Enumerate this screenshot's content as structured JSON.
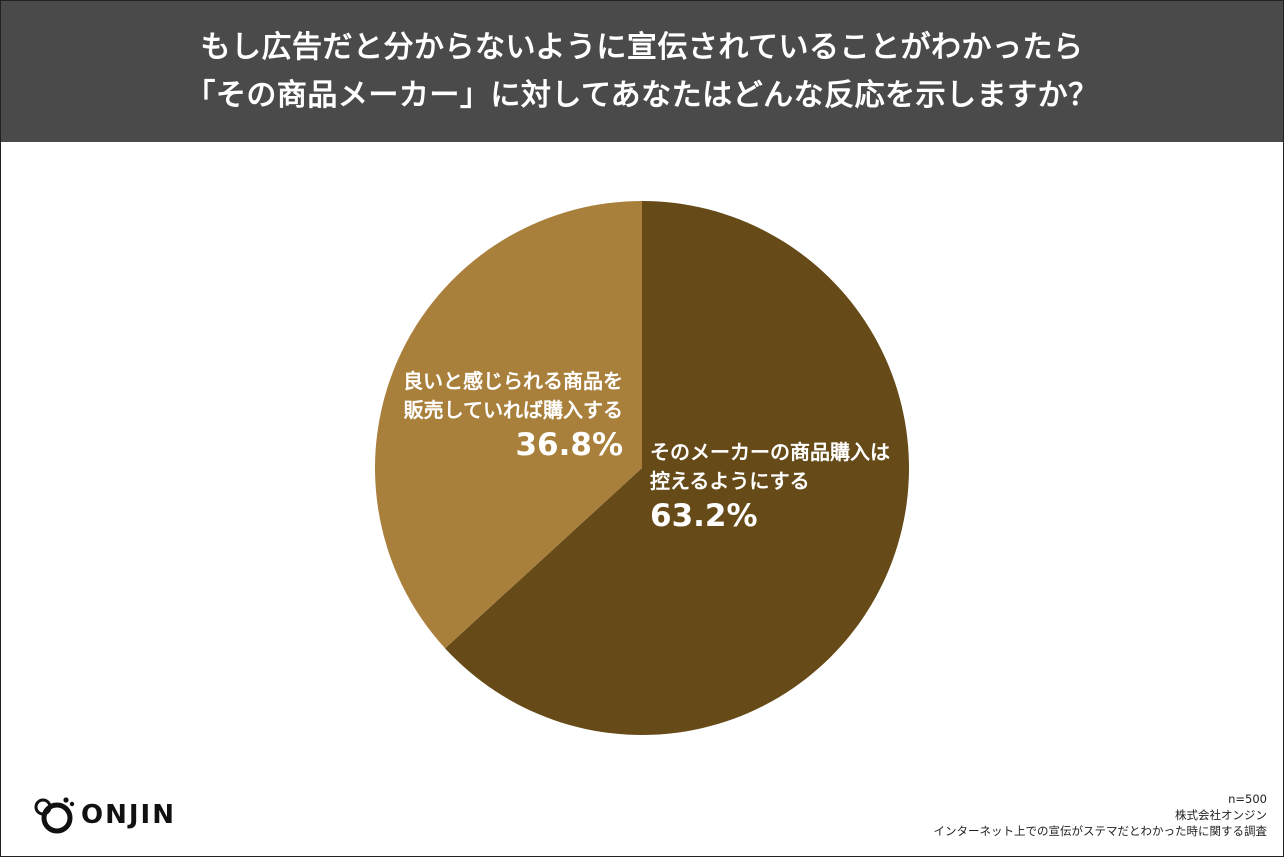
{
  "header": {
    "title_line1": "もし広告だと分からないように宣伝されていることがわかったら",
    "title_line2": "「その商品メーカー」に対してあなたはどんな反応を示しますか？"
  },
  "colors": {
    "header_bg": "#4a4a4a",
    "slice_dark": "#664a18",
    "slice_light": "#a97f3c"
  },
  "chart_data": {
    "type": "pie",
    "slices": [
      {
        "label_line1": "そのメーカーの商品購入は",
        "label_line2": "控えるようにする",
        "value": 63.2,
        "value_text": "63.2%",
        "color": "#664a18"
      },
      {
        "label_line1": "良いと感じられる商品を",
        "label_line2": "販売していれば購入する",
        "value": 36.8,
        "value_text": "36.8%",
        "color": "#a97f3c"
      }
    ]
  },
  "logo": {
    "text": "ONJIN"
  },
  "footnote": {
    "sample": "n=500",
    "company": "株式会社オンジン",
    "survey": "インターネット上での宣伝がステマだとわかった時に関する調査"
  }
}
